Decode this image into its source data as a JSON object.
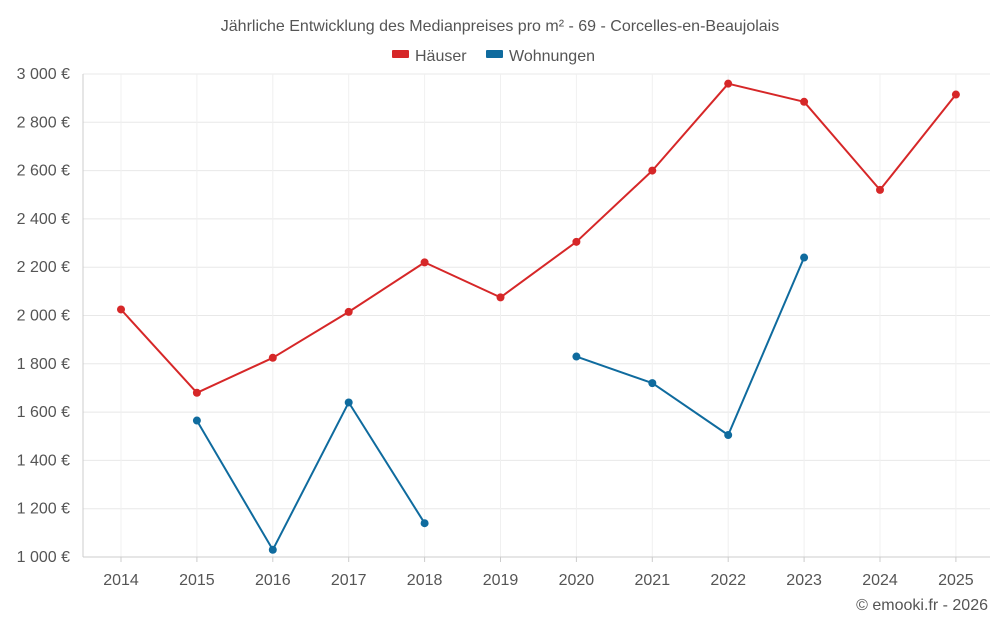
{
  "chart_data": {
    "type": "line",
    "title": "Jährliche Entwicklung des Medianpreises pro m² - 69 - Corcelles-en-Beaujolais",
    "xlabel": "",
    "ylabel": "",
    "categories": [
      "2014",
      "2015",
      "2016",
      "2017",
      "2018",
      "2019",
      "2020",
      "2021",
      "2022",
      "2023",
      "2024",
      "2025"
    ],
    "ylim": [
      1000,
      3000
    ],
    "yticks": [
      1000,
      1200,
      1400,
      1600,
      1800,
      2000,
      2200,
      2400,
      2600,
      2800,
      3000
    ],
    "ytick_labels": [
      "1 000 €",
      "1 200 €",
      "1 400 €",
      "1 600 €",
      "1 800 €",
      "2 000 €",
      "2 200 €",
      "2 400 €",
      "2 600 €",
      "2 800 €",
      "3 000 €"
    ],
    "grid": true,
    "legend_position": "top-center",
    "series": [
      {
        "name": "Häuser",
        "color": "#d62728",
        "values": [
          2025,
          1680,
          1825,
          2015,
          2220,
          2075,
          2305,
          2600,
          2960,
          2885,
          2520,
          2915
        ]
      },
      {
        "name": "Wohnungen",
        "color": "#0f6b9e",
        "values": [
          null,
          1565,
          1030,
          1640,
          1140,
          null,
          1830,
          1720,
          1505,
          2240,
          null,
          null
        ]
      }
    ]
  },
  "copyright": "© emooki.fr - 2026"
}
